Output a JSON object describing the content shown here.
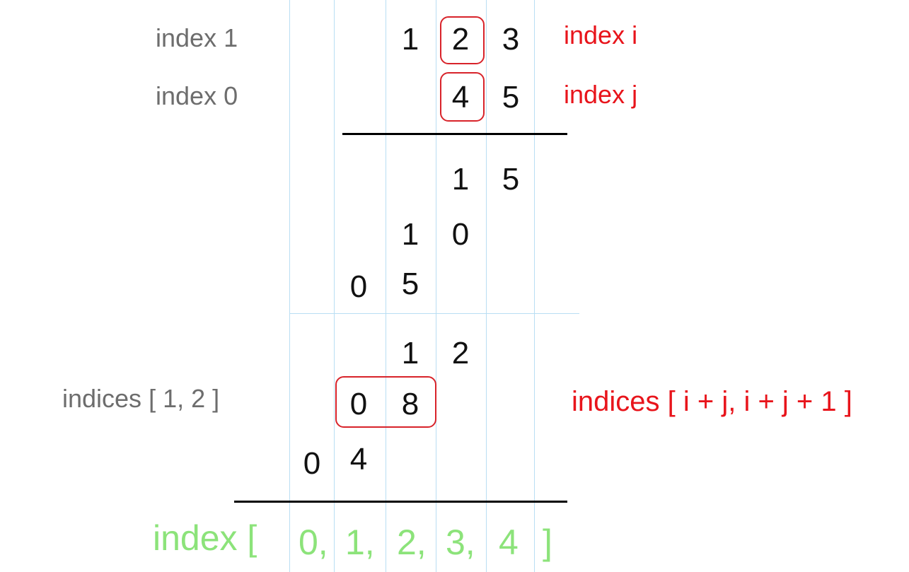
{
  "multiplicand_digits": [
    "1",
    "2",
    "3"
  ],
  "multiplier_digits": [
    "4",
    "5"
  ],
  "labels": {
    "left_index_1": "index 1",
    "left_index_0": "index 0",
    "right_index_i": "index i",
    "right_index_j": "index j",
    "left_indices": "indices [ 1, 2 ]",
    "right_indices": "indices [ i + j, i + j + 1 ]"
  },
  "partial_rows": [
    [
      "1",
      "5"
    ],
    [
      "1",
      "0"
    ],
    [
      "0",
      "5"
    ],
    [
      "1",
      "2"
    ],
    [
      "0",
      "8"
    ],
    [
      "0",
      "4"
    ]
  ],
  "result_index": {
    "prefix": "index [",
    "values": [
      "0,",
      "1,",
      "2,",
      "3,",
      "4"
    ],
    "suffix": "]"
  },
  "colors": {
    "gray_label": "#6d6d6d",
    "red_label": "#e8141b",
    "box_outline": "#d8232a",
    "green_index": "#8ce37a",
    "grid_blue": "#b9def3"
  }
}
